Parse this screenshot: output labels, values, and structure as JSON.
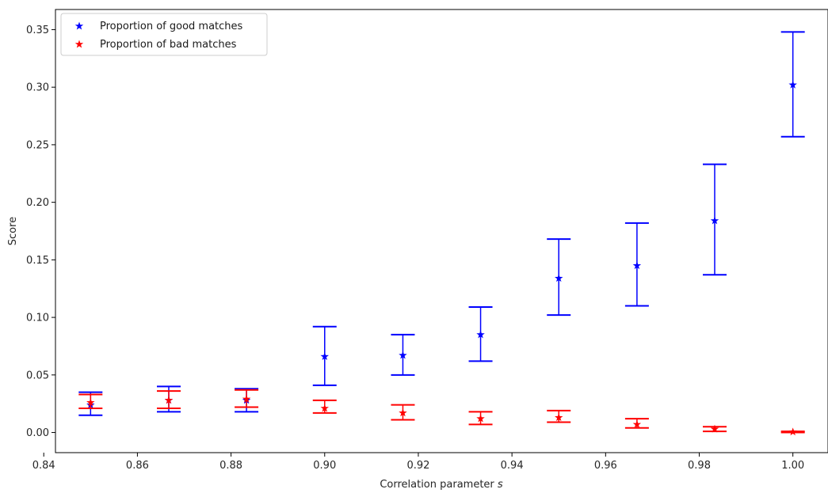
{
  "chart_data": {
    "type": "scatter",
    "title": "",
    "xlabel": "Correlation parameter ",
    "xlabel_var": "s",
    "ylabel": "Score",
    "xlim": [
      0.8425,
      1.0075
    ],
    "ylim": [
      -0.0175,
      0.3675
    ],
    "x_ticks": [
      0.84,
      0.86,
      0.88,
      0.9,
      0.92,
      0.94,
      0.96,
      0.98,
      1.0
    ],
    "x_tick_labels": [
      "0.84",
      "0.86",
      "0.88",
      "0.90",
      "0.92",
      "0.94",
      "0.96",
      "0.98",
      "1.00"
    ],
    "y_ticks": [
      0.0,
      0.05,
      0.1,
      0.15,
      0.2,
      0.25,
      0.3,
      0.35
    ],
    "y_tick_labels": [
      "0.00",
      "0.05",
      "0.10",
      "0.15",
      "0.20",
      "0.25",
      "0.30",
      "0.35"
    ],
    "grid": false,
    "legend_position": "top-left",
    "marker": "star",
    "x": [
      0.85,
      0.8667,
      0.8833,
      0.9,
      0.9167,
      0.9333,
      0.95,
      0.9667,
      0.9833,
      1.0
    ],
    "series": [
      {
        "name": "Proportion of good matches",
        "color": "#0000ff",
        "values": [
          0.024,
          0.028,
          0.028,
          0.066,
          0.067,
          0.085,
          0.134,
          0.145,
          0.184,
          0.302
        ],
        "err_low": [
          0.015,
          0.018,
          0.018,
          0.041,
          0.05,
          0.062,
          0.102,
          0.11,
          0.137,
          0.257
        ],
        "err_high": [
          0.035,
          0.04,
          0.038,
          0.092,
          0.085,
          0.109,
          0.168,
          0.182,
          0.233,
          0.348
        ]
      },
      {
        "name": "Proportion of bad matches",
        "color": "#ff0000",
        "values": [
          0.026,
          0.028,
          0.029,
          0.021,
          0.017,
          0.012,
          0.013,
          0.007,
          0.003,
          0.0005
        ],
        "err_low": [
          0.021,
          0.021,
          0.022,
          0.017,
          0.011,
          0.007,
          0.009,
          0.004,
          0.001,
          0.0
        ],
        "err_high": [
          0.033,
          0.036,
          0.037,
          0.028,
          0.024,
          0.018,
          0.019,
          0.012,
          0.005,
          0.001
        ]
      }
    ]
  }
}
